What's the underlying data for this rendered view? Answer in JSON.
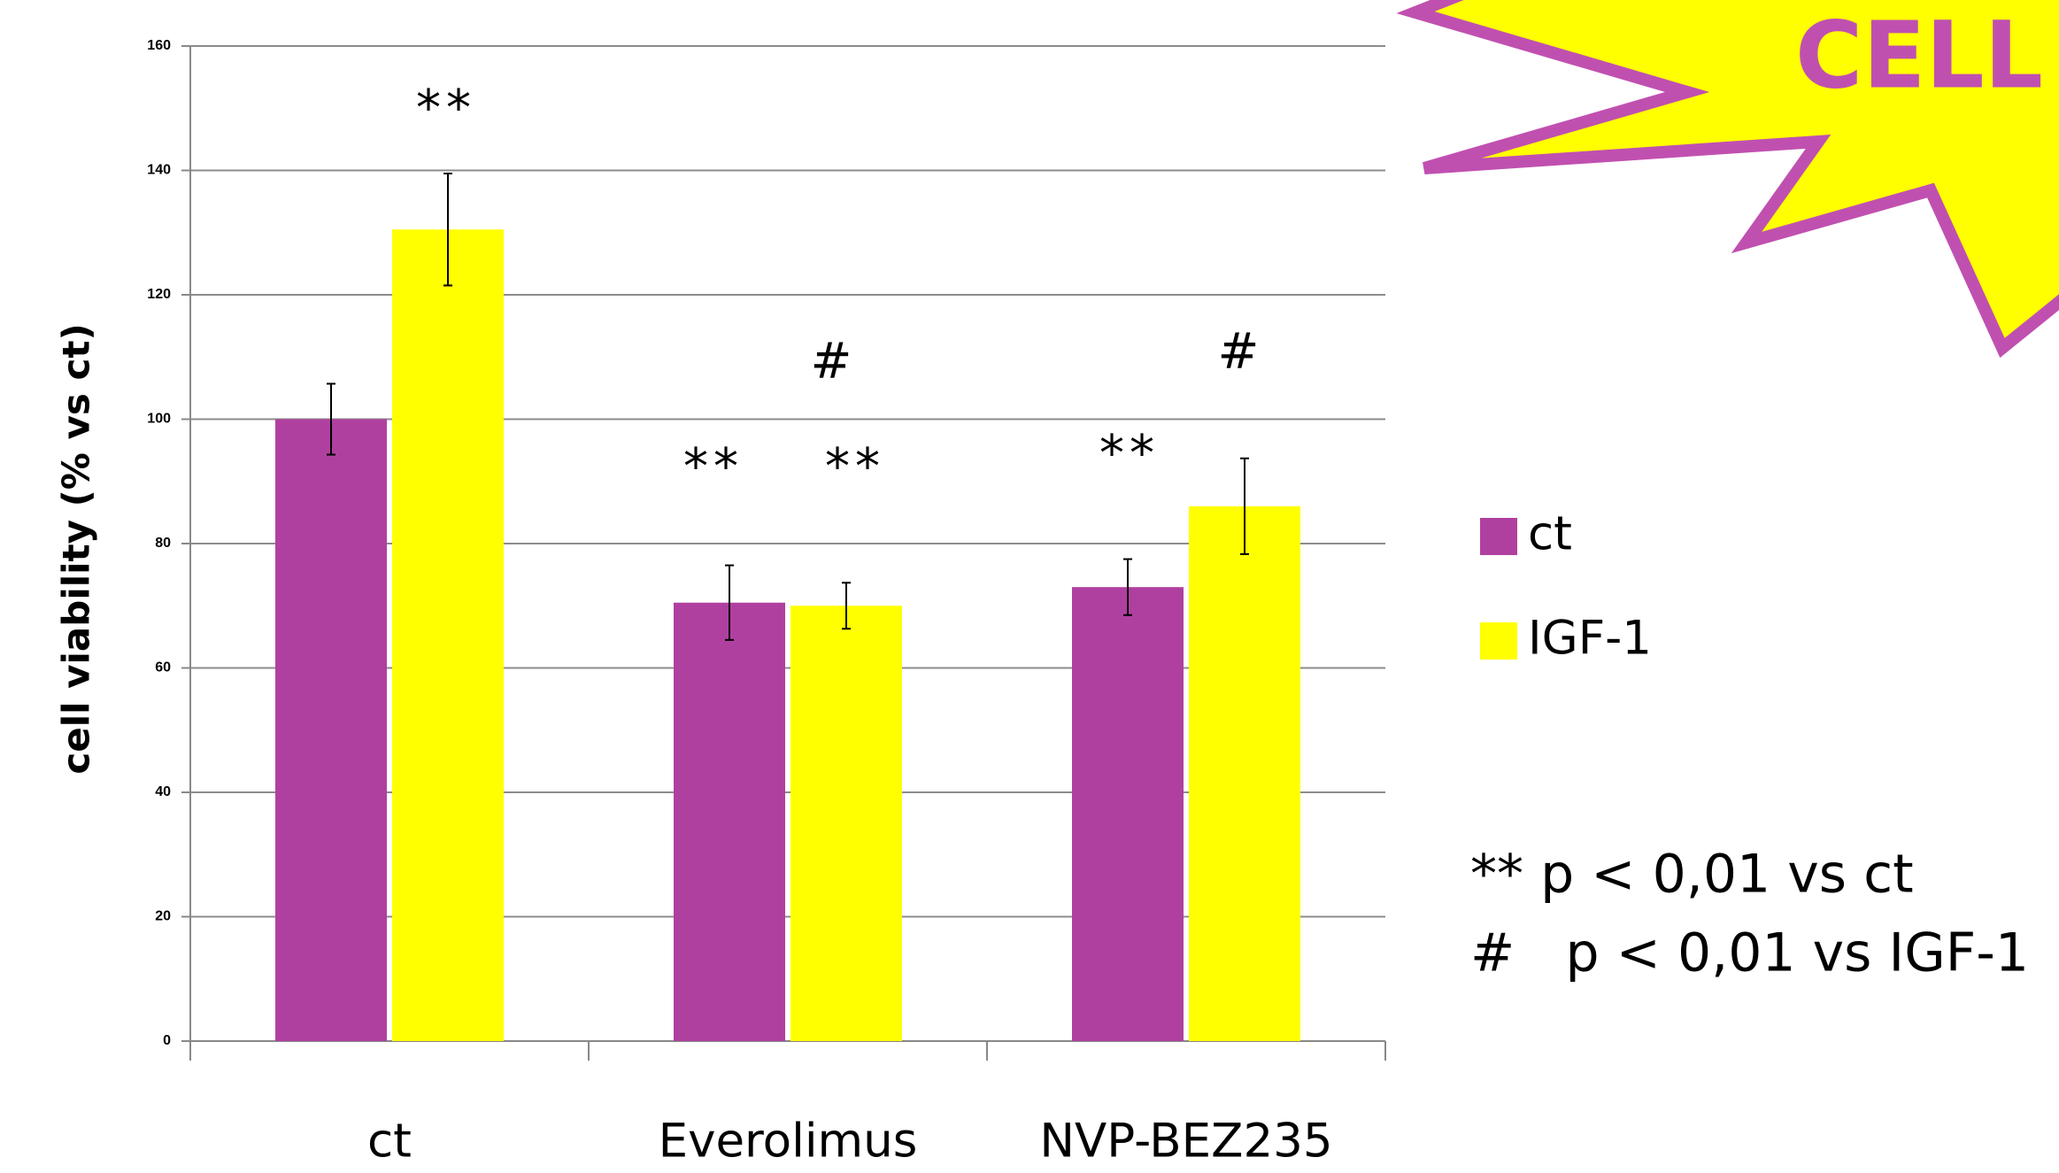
{
  "chart_data": {
    "type": "bar",
    "y_label": "cell viability (% vs ct)",
    "categories": [
      "ct",
      "Everolimus",
      "NVP-BEZ235"
    ],
    "series": [
      {
        "name": "ct",
        "color": "#b040a0",
        "values": [
          100,
          70.5,
          73
        ],
        "errors": [
          5.7,
          6,
          4.5
        ]
      },
      {
        "name": "IGF-1",
        "color": "#ffff00",
        "values": [
          130.5,
          70,
          86
        ],
        "errors": [
          9,
          3.7,
          7.7
        ]
      }
    ],
    "ylim": [
      0,
      160
    ],
    "yticks": [
      0,
      20,
      40,
      60,
      80,
      100,
      120,
      140,
      160
    ],
    "grid": true,
    "annotations": [
      "**",
      "**",
      "**",
      "#",
      "**",
      "#"
    ],
    "notes": [
      "** p < 0,01 vs ct",
      "#   p < 0,01 vs IGF-1"
    ],
    "banner": "CELL"
  }
}
